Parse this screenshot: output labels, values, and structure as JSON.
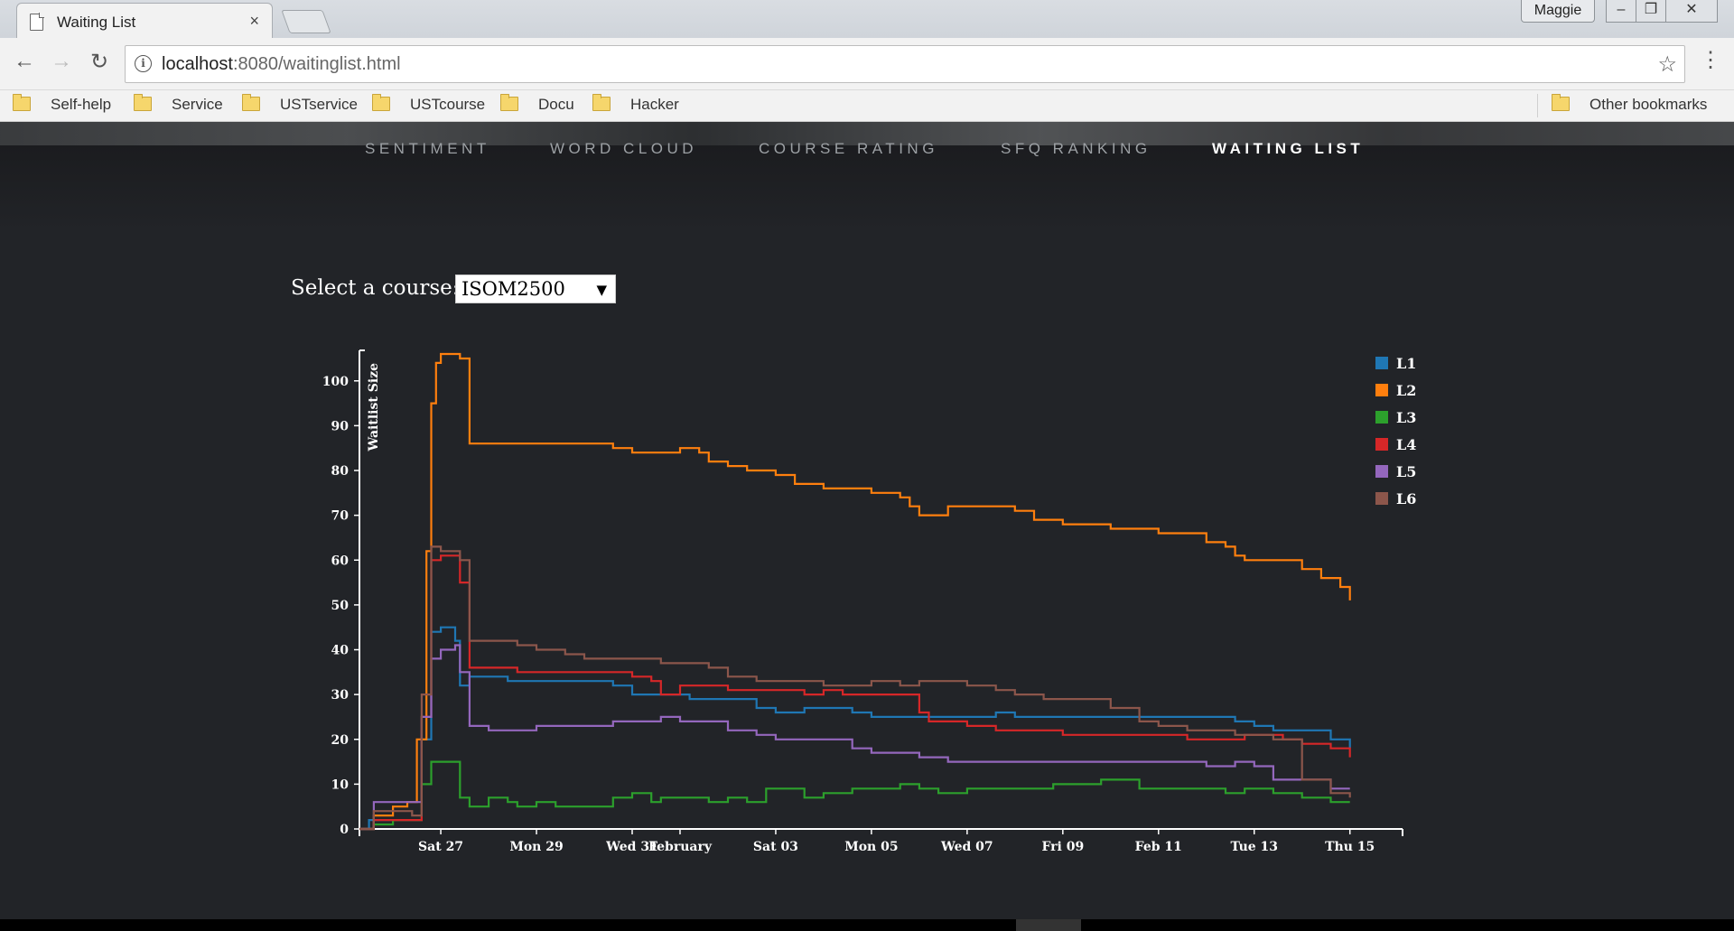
{
  "browser": {
    "tab_title": "Waiting List",
    "tab_close": "×",
    "profile_name": "Maggie",
    "window_min": "–",
    "window_max": "❐",
    "window_close": "✕",
    "back": "←",
    "forward": "→",
    "reload": "↻",
    "url_host": "localhost",
    "url_rest": ":8080/waitinglist.html",
    "info": "i",
    "star": "☆",
    "menu": "⋮",
    "bookmarks": [
      "Self-help",
      "Service",
      "USTservice",
      "USTcourse",
      "Docu",
      "Hacker"
    ],
    "other_bookmarks": "Other bookmarks"
  },
  "nav": {
    "items": [
      "SENTIMENT",
      "WORD CLOUD",
      "COURSE RATING",
      "SFQ RANKING",
      "WAITING LIST"
    ],
    "active": "WAITING LIST"
  },
  "course_select": {
    "label": "Select a course:",
    "value": "ISOM2500",
    "arrow": "▼"
  },
  "colors": {
    "L1": "#1f77b4",
    "L2": "#ff7f0e",
    "L3": "#2ca02c",
    "L4": "#d62728",
    "L5": "#9467bd",
    "L6": "#8c564b"
  },
  "chart_data": {
    "type": "line",
    "ylabel": "Waitlist Size",
    "xlabel": "",
    "ylim": [
      0,
      106
    ],
    "yticks": [
      0,
      10,
      20,
      30,
      40,
      50,
      60,
      70,
      80,
      90,
      100
    ],
    "xlim": [
      25.3,
      47.1
    ],
    "xticks": [
      {
        "x": 27,
        "label": "Sat 27"
      },
      {
        "x": 29,
        "label": "Mon 29"
      },
      {
        "x": 31,
        "label": "Wed 31"
      },
      {
        "x": 32,
        "label": "February"
      },
      {
        "x": 34,
        "label": "Sat 03"
      },
      {
        "x": 36,
        "label": "Mon 05"
      },
      {
        "x": 38,
        "label": "Wed 07"
      },
      {
        "x": 40,
        "label": "Fri 09"
      },
      {
        "x": 42,
        "label": "Feb 11"
      },
      {
        "x": 44,
        "label": "Tue 13"
      },
      {
        "x": 46,
        "label": "Thu 15"
      }
    ],
    "legend": [
      "L1",
      "L2",
      "L3",
      "L4",
      "L5",
      "L6"
    ],
    "series": [
      {
        "name": "L1",
        "points": [
          [
            25.3,
            0
          ],
          [
            25.5,
            2
          ],
          [
            26.0,
            2
          ],
          [
            26.4,
            2
          ],
          [
            26.6,
            20
          ],
          [
            26.8,
            44
          ],
          [
            27.0,
            45
          ],
          [
            27.2,
            45
          ],
          [
            27.3,
            42
          ],
          [
            27.4,
            32
          ],
          [
            27.6,
            34
          ],
          [
            28.0,
            34
          ],
          [
            28.4,
            33
          ],
          [
            29.0,
            33
          ],
          [
            30.0,
            33
          ],
          [
            30.6,
            32
          ],
          [
            31.0,
            30
          ],
          [
            31.8,
            30
          ],
          [
            32.2,
            29
          ],
          [
            33.0,
            29
          ],
          [
            33.6,
            27
          ],
          [
            34.0,
            26
          ],
          [
            34.6,
            27
          ],
          [
            35.6,
            26
          ],
          [
            36.0,
            25
          ],
          [
            36.6,
            25
          ],
          [
            37.4,
            25
          ],
          [
            38.0,
            25
          ],
          [
            38.6,
            26
          ],
          [
            39.0,
            25
          ],
          [
            40.0,
            25
          ],
          [
            41.0,
            25
          ],
          [
            42.0,
            25
          ],
          [
            43.2,
            25
          ],
          [
            43.6,
            24
          ],
          [
            44.0,
            23
          ],
          [
            44.4,
            22
          ],
          [
            45.0,
            22
          ],
          [
            45.6,
            20
          ],
          [
            46.0,
            18
          ]
        ]
      },
      {
        "name": "L2",
        "points": [
          [
            25.3,
            0
          ],
          [
            25.6,
            3
          ],
          [
            26.0,
            5
          ],
          [
            26.3,
            6
          ],
          [
            26.5,
            20
          ],
          [
            26.7,
            62
          ],
          [
            26.8,
            95
          ],
          [
            26.9,
            104
          ],
          [
            27.0,
            106
          ],
          [
            27.2,
            106
          ],
          [
            27.4,
            105
          ],
          [
            27.6,
            86
          ],
          [
            28.0,
            86
          ],
          [
            29.0,
            86
          ],
          [
            30.0,
            86
          ],
          [
            30.6,
            85
          ],
          [
            31.0,
            84
          ],
          [
            31.6,
            84
          ],
          [
            32.0,
            85
          ],
          [
            32.4,
            84
          ],
          [
            32.6,
            82
          ],
          [
            33.0,
            81
          ],
          [
            33.4,
            80
          ],
          [
            34.0,
            79
          ],
          [
            34.4,
            77
          ],
          [
            35.0,
            76
          ],
          [
            36.0,
            75
          ],
          [
            36.6,
            74
          ],
          [
            36.8,
            72
          ],
          [
            37.0,
            70
          ],
          [
            37.6,
            72
          ],
          [
            38.6,
            72
          ],
          [
            39.0,
            71
          ],
          [
            39.4,
            69
          ],
          [
            40.0,
            68
          ],
          [
            40.6,
            68
          ],
          [
            41.0,
            67
          ],
          [
            41.6,
            67
          ],
          [
            42.0,
            66
          ],
          [
            43.0,
            64
          ],
          [
            43.4,
            63
          ],
          [
            43.6,
            61
          ],
          [
            43.8,
            60
          ],
          [
            44.0,
            60
          ],
          [
            44.6,
            60
          ],
          [
            45.0,
            58
          ],
          [
            45.4,
            56
          ],
          [
            45.8,
            54
          ],
          [
            46.0,
            51
          ]
        ]
      },
      {
        "name": "L3",
        "points": [
          [
            25.3,
            0
          ],
          [
            25.6,
            1
          ],
          [
            26.0,
            2
          ],
          [
            26.5,
            2
          ],
          [
            26.6,
            10
          ],
          [
            26.8,
            15
          ],
          [
            27.0,
            15
          ],
          [
            27.3,
            15
          ],
          [
            27.4,
            7
          ],
          [
            27.6,
            5
          ],
          [
            28.0,
            7
          ],
          [
            28.4,
            6
          ],
          [
            28.6,
            5
          ],
          [
            29.0,
            6
          ],
          [
            29.4,
            5
          ],
          [
            30.0,
            5
          ],
          [
            30.6,
            7
          ],
          [
            31.0,
            8
          ],
          [
            31.4,
            6
          ],
          [
            31.6,
            7
          ],
          [
            32.0,
            7
          ],
          [
            32.6,
            6
          ],
          [
            33.0,
            7
          ],
          [
            33.4,
            6
          ],
          [
            33.8,
            9
          ],
          [
            34.0,
            9
          ],
          [
            34.6,
            7
          ],
          [
            35.0,
            8
          ],
          [
            35.6,
            9
          ],
          [
            36.0,
            9
          ],
          [
            36.6,
            10
          ],
          [
            37.0,
            9
          ],
          [
            37.4,
            8
          ],
          [
            38.0,
            9
          ],
          [
            38.6,
            9
          ],
          [
            39.0,
            9
          ],
          [
            39.8,
            10
          ],
          [
            40.0,
            10
          ],
          [
            40.4,
            10
          ],
          [
            40.8,
            11
          ],
          [
            41.4,
            11
          ],
          [
            41.6,
            9
          ],
          [
            42.0,
            9
          ],
          [
            43.0,
            9
          ],
          [
            43.4,
            8
          ],
          [
            43.8,
            9
          ],
          [
            44.0,
            9
          ],
          [
            44.4,
            8
          ],
          [
            45.0,
            7
          ],
          [
            45.6,
            6
          ],
          [
            46.0,
            6
          ]
        ]
      },
      {
        "name": "L4",
        "points": [
          [
            25.3,
            0
          ],
          [
            25.6,
            2
          ],
          [
            26.0,
            2
          ],
          [
            26.4,
            2
          ],
          [
            26.6,
            25
          ],
          [
            26.8,
            60
          ],
          [
            27.0,
            61
          ],
          [
            27.2,
            61
          ],
          [
            27.4,
            55
          ],
          [
            27.6,
            36
          ],
          [
            28.0,
            36
          ],
          [
            28.6,
            35
          ],
          [
            29.4,
            35
          ],
          [
            30.0,
            35
          ],
          [
            31.0,
            34
          ],
          [
            31.4,
            33
          ],
          [
            31.6,
            30
          ],
          [
            32.0,
            32
          ],
          [
            32.6,
            32
          ],
          [
            33.0,
            31
          ],
          [
            34.0,
            31
          ],
          [
            34.6,
            30
          ],
          [
            35.0,
            31
          ],
          [
            35.4,
            30
          ],
          [
            36.0,
            30
          ],
          [
            36.6,
            30
          ],
          [
            37.0,
            26
          ],
          [
            37.2,
            24
          ],
          [
            37.6,
            24
          ],
          [
            38.0,
            23
          ],
          [
            38.6,
            22
          ],
          [
            39.0,
            22
          ],
          [
            40.0,
            21
          ],
          [
            41.0,
            21
          ],
          [
            42.0,
            21
          ],
          [
            42.6,
            20
          ],
          [
            43.0,
            20
          ],
          [
            43.4,
            20
          ],
          [
            43.8,
            21
          ],
          [
            44.0,
            21
          ],
          [
            44.6,
            20
          ],
          [
            45.0,
            19
          ],
          [
            45.6,
            18
          ],
          [
            46.0,
            16
          ]
        ]
      },
      {
        "name": "L5",
        "points": [
          [
            25.3,
            0
          ],
          [
            25.6,
            6
          ],
          [
            26.0,
            6
          ],
          [
            26.4,
            6
          ],
          [
            26.6,
            25
          ],
          [
            26.8,
            38
          ],
          [
            27.0,
            40
          ],
          [
            27.3,
            41
          ],
          [
            27.4,
            35
          ],
          [
            27.6,
            23
          ],
          [
            28.0,
            22
          ],
          [
            28.6,
            22
          ],
          [
            29.0,
            23
          ],
          [
            30.0,
            23
          ],
          [
            30.6,
            24
          ],
          [
            31.0,
            24
          ],
          [
            31.6,
            25
          ],
          [
            32.0,
            24
          ],
          [
            32.6,
            24
          ],
          [
            33.0,
            22
          ],
          [
            33.6,
            21
          ],
          [
            34.0,
            20
          ],
          [
            35.0,
            20
          ],
          [
            35.6,
            18
          ],
          [
            36.0,
            17
          ],
          [
            36.6,
            17
          ],
          [
            37.0,
            16
          ],
          [
            37.6,
            15
          ],
          [
            38.0,
            15
          ],
          [
            39.0,
            15
          ],
          [
            40.0,
            15
          ],
          [
            41.0,
            15
          ],
          [
            42.0,
            15
          ],
          [
            42.8,
            15
          ],
          [
            43.0,
            14
          ],
          [
            43.6,
            15
          ],
          [
            44.0,
            14
          ],
          [
            44.4,
            11
          ],
          [
            45.0,
            11
          ],
          [
            45.6,
            9
          ],
          [
            46.0,
            9
          ]
        ]
      },
      {
        "name": "L6",
        "points": [
          [
            25.3,
            0
          ],
          [
            25.6,
            4
          ],
          [
            26.0,
            4
          ],
          [
            26.4,
            3
          ],
          [
            26.6,
            30
          ],
          [
            26.8,
            63
          ],
          [
            27.0,
            62
          ],
          [
            27.2,
            62
          ],
          [
            27.4,
            60
          ],
          [
            27.6,
            42
          ],
          [
            28.0,
            42
          ],
          [
            28.6,
            41
          ],
          [
            29.0,
            40
          ],
          [
            29.6,
            39
          ],
          [
            30.0,
            38
          ],
          [
            31.0,
            38
          ],
          [
            31.6,
            37
          ],
          [
            32.0,
            37
          ],
          [
            32.6,
            36
          ],
          [
            33.0,
            34
          ],
          [
            33.6,
            33
          ],
          [
            34.0,
            33
          ],
          [
            34.6,
            33
          ],
          [
            35.0,
            32
          ],
          [
            35.6,
            32
          ],
          [
            36.0,
            33
          ],
          [
            36.6,
            32
          ],
          [
            37.0,
            33
          ],
          [
            37.6,
            33
          ],
          [
            38.0,
            32
          ],
          [
            38.6,
            31
          ],
          [
            39.0,
            30
          ],
          [
            39.6,
            29
          ],
          [
            40.0,
            29
          ],
          [
            40.6,
            29
          ],
          [
            41.0,
            27
          ],
          [
            41.6,
            24
          ],
          [
            42.0,
            23
          ],
          [
            42.6,
            22
          ],
          [
            43.0,
            22
          ],
          [
            43.6,
            21
          ],
          [
            44.0,
            21
          ],
          [
            44.4,
            20
          ],
          [
            45.0,
            11
          ],
          [
            45.6,
            8
          ],
          [
            46.0,
            7
          ]
        ]
      }
    ]
  }
}
